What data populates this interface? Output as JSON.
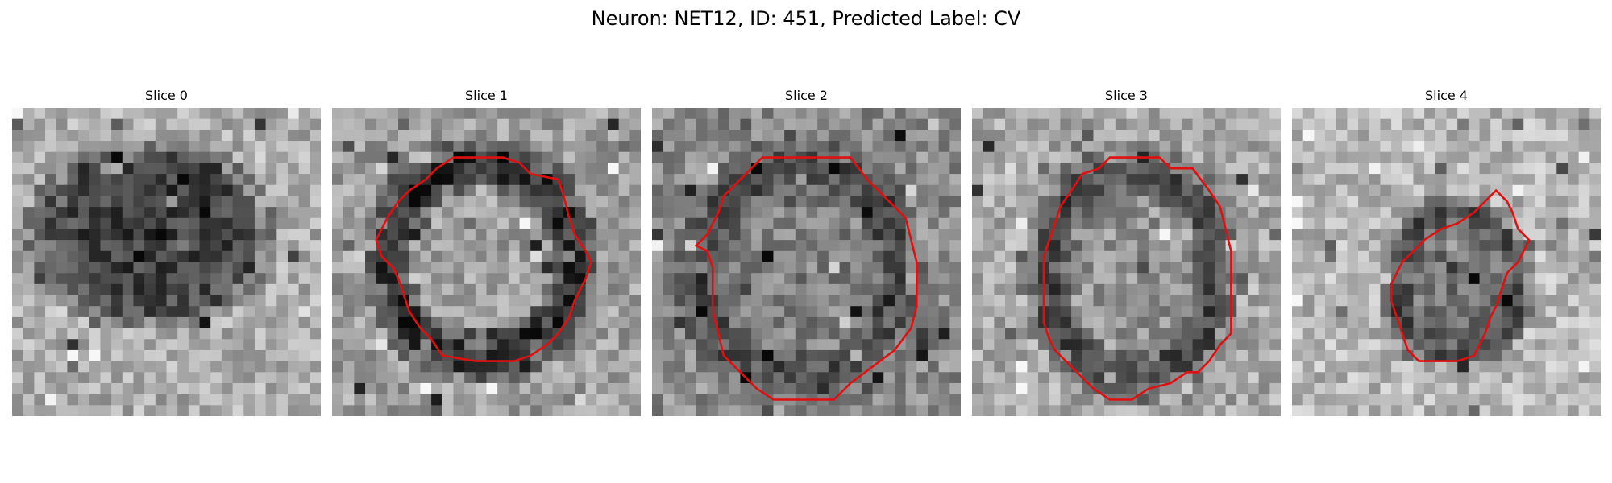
{
  "figure": {
    "title": "Neuron: NET12, ID: 451, Predicted Label: CV"
  },
  "panels": [
    {
      "title": "Slice 0",
      "has_contour": false,
      "pattern": "dark-blob"
    },
    {
      "title": "Slice 1",
      "has_contour": true,
      "pattern": "dark-ring"
    },
    {
      "title": "Slice 2",
      "has_contour": true,
      "pattern": "mid-disk"
    },
    {
      "title": "Slice 3",
      "has_contour": true,
      "pattern": "light-disk"
    },
    {
      "title": "Slice 4",
      "has_contour": true,
      "pattern": "small-dark"
    }
  ],
  "colors": {
    "contour": "#e01010"
  }
}
